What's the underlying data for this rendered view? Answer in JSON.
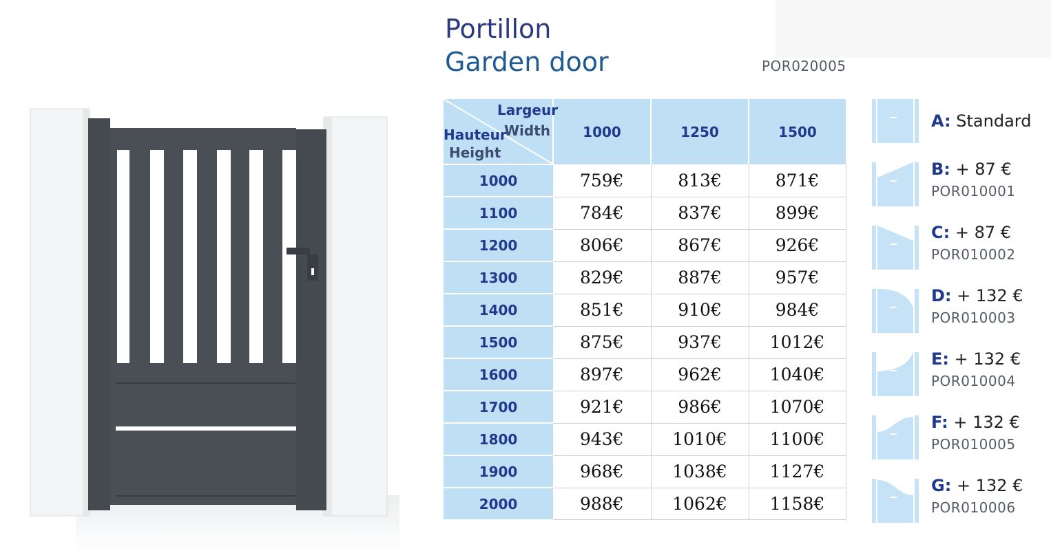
{
  "title": {
    "fr": "Portillon",
    "en": "Garden door"
  },
  "reference": "POR020005",
  "table": {
    "corner": {
      "largeur": "Largeur",
      "width": "Width",
      "hauteur": "Hauteur",
      "height": "Height"
    },
    "widths": [
      "1000",
      "1250",
      "1500"
    ],
    "rows": [
      {
        "height": "1000",
        "prices": [
          "759€",
          "813€",
          "871€"
        ]
      },
      {
        "height": "1100",
        "prices": [
          "784€",
          "837€",
          "899€"
        ]
      },
      {
        "height": "1200",
        "prices": [
          "806€",
          "867€",
          "926€"
        ]
      },
      {
        "height": "1300",
        "prices": [
          "829€",
          "887€",
          "957€"
        ]
      },
      {
        "height": "1400",
        "prices": [
          "851€",
          "910€",
          "984€"
        ]
      },
      {
        "height": "1500",
        "prices": [
          "875€",
          "937€",
          "1012€"
        ]
      },
      {
        "height": "1600",
        "prices": [
          "897€",
          "962€",
          "1040€"
        ]
      },
      {
        "height": "1700",
        "prices": [
          "921€",
          "986€",
          "1070€"
        ]
      },
      {
        "height": "1800",
        "prices": [
          "943€",
          "1010€",
          "1100€"
        ]
      },
      {
        "height": "1900",
        "prices": [
          "968€",
          "1038€",
          "1127€"
        ]
      },
      {
        "height": "2000",
        "prices": [
          "988€",
          "1062€",
          "1158€"
        ]
      }
    ]
  },
  "options": [
    {
      "letter": "A:",
      "text": "Standard",
      "ref": "",
      "shape": "flat-top-icon"
    },
    {
      "letter": "B:",
      "text": "+ 87 €",
      "ref": "POR010001",
      "shape": "rising-slope-icon"
    },
    {
      "letter": "C:",
      "text": "+ 87 €",
      "ref": "POR010002",
      "shape": "falling-slope-icon"
    },
    {
      "letter": "D:",
      "text": "+ 132 €",
      "ref": "POR010003",
      "shape": "convex-arc-icon"
    },
    {
      "letter": "E:",
      "text": "+ 132 €",
      "ref": "POR010004",
      "shape": "concave-arc-icon"
    },
    {
      "letter": "F:",
      "text": "+ 132 €",
      "ref": "POR010005",
      "shape": "s-curve-up-icon"
    },
    {
      "letter": "G:",
      "text": "+ 132 €",
      "ref": "POR010006",
      "shape": "s-curve-down-icon"
    }
  ],
  "colors": {
    "header_fill": "#bfdff5",
    "header_text": "#1f3a8c",
    "gate": "#4a4f56",
    "title_dark": "#2b3a80",
    "title_blue": "#1d5a93"
  }
}
